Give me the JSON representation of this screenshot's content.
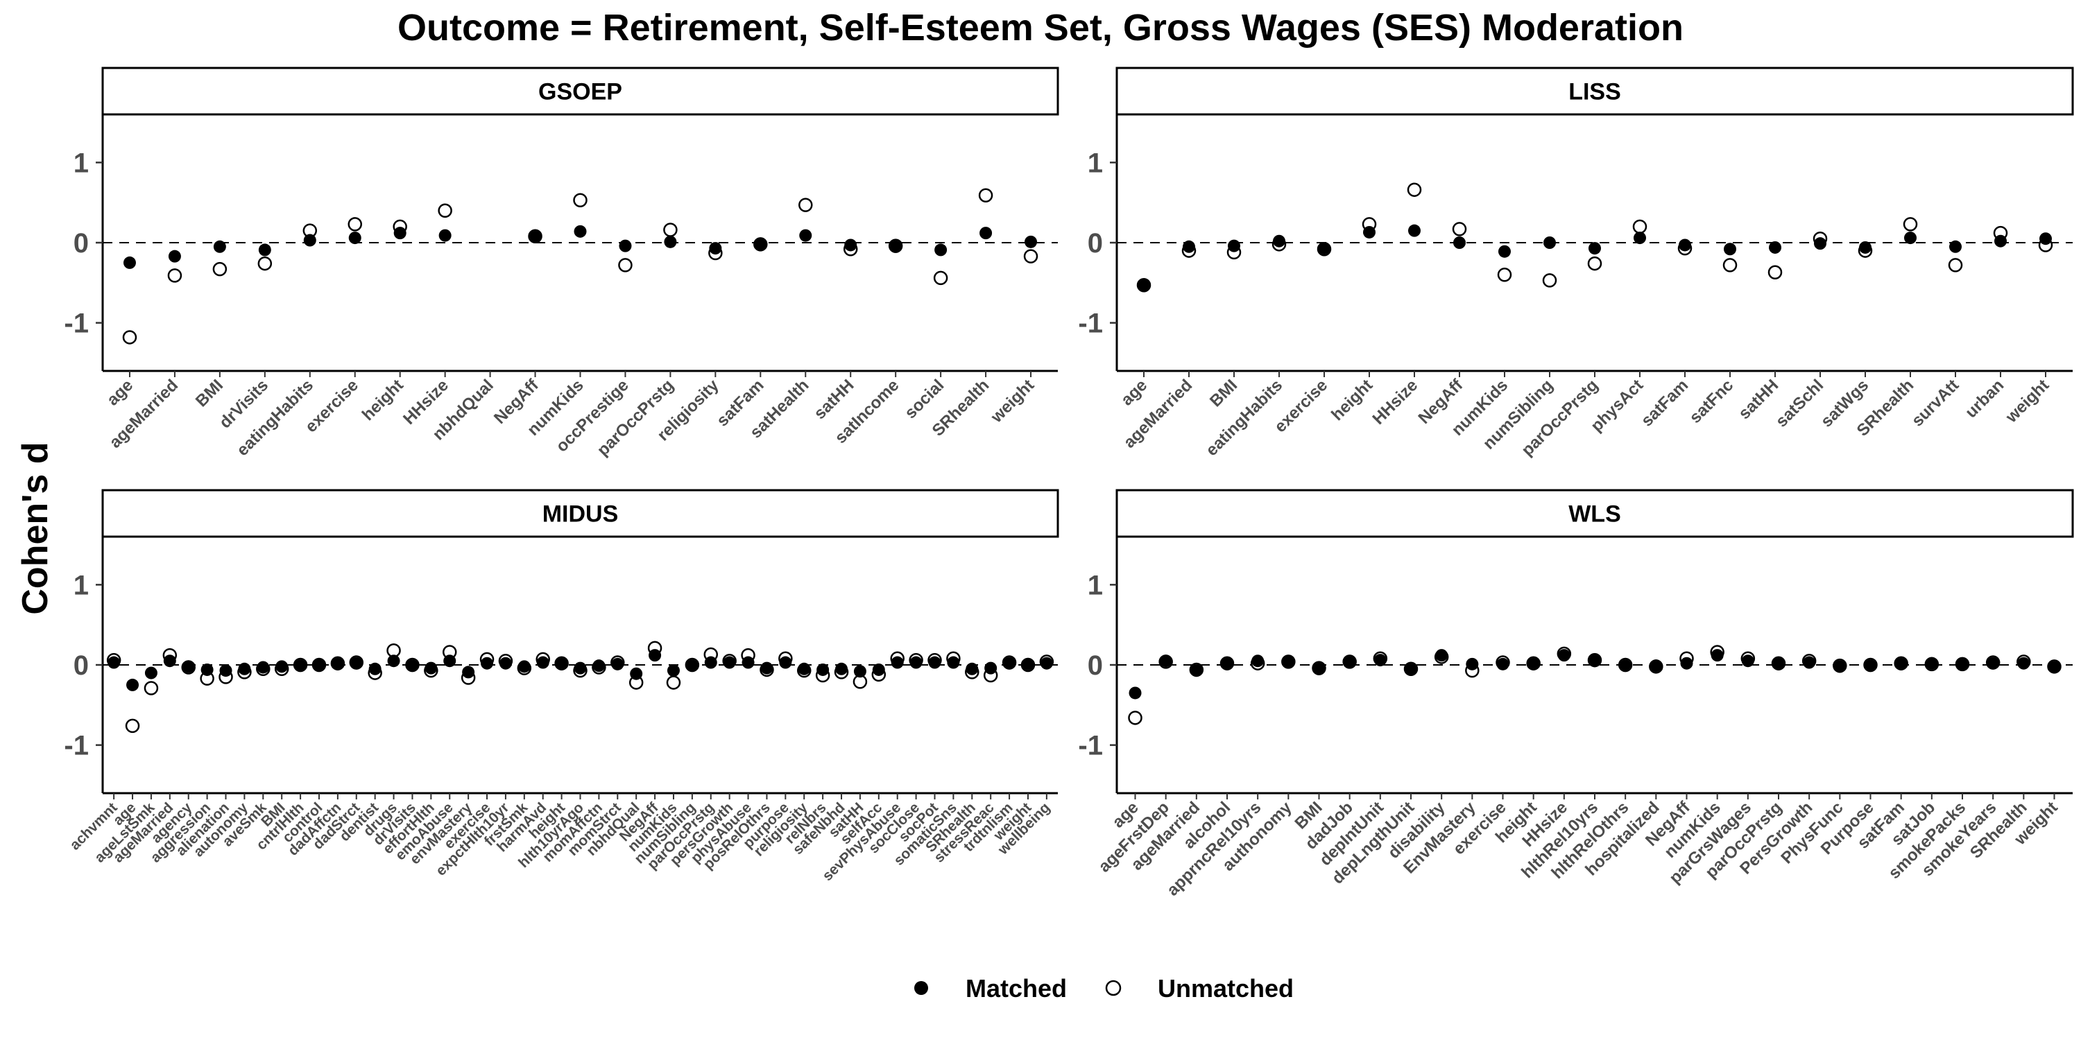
{
  "chart_data": {
    "type": "scatter",
    "title": "Outcome = Retirement, Self-Esteem Set, Gross Wages (SES) Moderation",
    "ylabel": "Cohen's d",
    "xlabel": "",
    "ylim": [
      -1.6,
      1.6
    ],
    "yticks": [
      -1,
      0,
      1
    ],
    "reference_line": 0,
    "grid": false,
    "legend": {
      "position": "bottom",
      "entries": [
        {
          "label": "Matched",
          "symbol": "filled-circle"
        },
        {
          "label": "Unmatched",
          "symbol": "open-circle"
        }
      ]
    },
    "panels": [
      {
        "name": "GSOEP",
        "categories": [
          "age",
          "ageMarried",
          "BMI",
          "drVisits",
          "eatingHabits",
          "exercise",
          "height",
          "HHsize",
          "nbhdQual",
          "NegAff",
          "numKids",
          "occPrestige",
          "parOccPrstg",
          "religiosity",
          "satFam",
          "satHealth",
          "satHH",
          "satIncome",
          "social",
          "SRhealth",
          "weight"
        ],
        "series": [
          {
            "name": "Matched",
            "values": [
              -0.25,
              -0.17,
              -0.05,
              -0.09,
              0.03,
              0.06,
              0.12,
              0.09,
              null,
              0.08,
              0.14,
              -0.04,
              0.01,
              -0.07,
              -0.03,
              0.09,
              -0.03,
              -0.05,
              -0.09,
              0.12,
              0.01
            ]
          },
          {
            "name": "Unmatched",
            "values": [
              -1.18,
              -0.41,
              -0.33,
              -0.26,
              0.15,
              0.23,
              0.2,
              0.4,
              null,
              0.08,
              0.53,
              -0.28,
              0.16,
              -0.13,
              -0.02,
              0.47,
              -0.08,
              -0.04,
              -0.44,
              0.59,
              -0.17
            ]
          }
        ]
      },
      {
        "name": "LISS",
        "categories": [
          "age",
          "ageMarried",
          "BMI",
          "eatingHabits",
          "exercise",
          "height",
          "HHsize",
          "NegAff",
          "numKids",
          "numSibling",
          "parOccPrstg",
          "physAct",
          "satFam",
          "satFnc",
          "satHH",
          "satSchl",
          "satWgs",
          "SRhealth",
          "survAtt",
          "urban",
          "weight"
        ],
        "series": [
          {
            "name": "Matched",
            "values": [
              -0.53,
              -0.05,
              -0.04,
              0.02,
              -0.07,
              0.13,
              0.15,
              0.0,
              -0.11,
              0.0,
              -0.07,
              0.06,
              -0.03,
              -0.08,
              -0.06,
              -0.01,
              -0.06,
              0.06,
              -0.05,
              0.02,
              0.05
            ]
          },
          {
            "name": "Unmatched",
            "values": [
              -0.53,
              -0.1,
              -0.12,
              -0.02,
              -0.08,
              0.23,
              0.66,
              0.17,
              -0.4,
              -0.47,
              -0.26,
              0.2,
              -0.07,
              -0.28,
              -0.37,
              0.05,
              -0.1,
              0.23,
              -0.28,
              0.12,
              -0.03
            ]
          }
        ]
      },
      {
        "name": "MIDUS",
        "categories": [
          "achvmnt",
          "age",
          "ageLstSmk",
          "ageMarried",
          "agency",
          "aggression",
          "alienation",
          "autonomy",
          "aveSmk",
          "BMI",
          "cntrlHlth",
          "control",
          "dadAffctn",
          "dadStrct",
          "dentist",
          "drugs",
          "drVisits",
          "effortHlth",
          "emoAbuse",
          "envMastery",
          "exercise",
          "expctHlth10yr",
          "frstSmk",
          "harmAvd",
          "height",
          "hlth10yrAgo",
          "momAffctn",
          "momStrct",
          "nbhdQual",
          "NegAff",
          "numKids",
          "numSibling",
          "parOccPrstg",
          "persGrowth",
          "physAbuse",
          "posRelOthrs",
          "purpose",
          "religiosity",
          "relNbrs",
          "safeNbhd",
          "satHH",
          "selfAcc",
          "sevPhysAbuse",
          "socClose",
          "socPot",
          "somaticSns",
          "SRhealth",
          "stressReac",
          "trdtnlism",
          "weight",
          "wellbeing"
        ],
        "series": [
          {
            "name": "Matched",
            "values": [
              0.03,
              -0.25,
              -0.1,
              0.05,
              -0.02,
              -0.06,
              -0.07,
              -0.05,
              -0.03,
              -0.02,
              -0.01,
              0.0,
              0.01,
              0.02,
              -0.05,
              0.05,
              -0.01,
              -0.04,
              0.05,
              -0.09,
              0.02,
              0.02,
              -0.02,
              0.03,
              0.01,
              -0.04,
              -0.01,
              0.01,
              -0.11,
              0.12,
              -0.07,
              -0.01,
              0.03,
              0.03,
              0.03,
              -0.04,
              0.03,
              -0.05,
              -0.06,
              -0.05,
              -0.08,
              -0.06,
              0.03,
              0.03,
              0.03,
              0.03,
              -0.05,
              -0.04,
              0.02,
              0.01,
              0.02
            ]
          },
          {
            "name": "Unmatched",
            "values": [
              0.06,
              -0.76,
              -0.29,
              0.12,
              -0.03,
              -0.17,
              -0.15,
              -0.09,
              -0.05,
              -0.05,
              0.0,
              0.0,
              0.02,
              0.03,
              -0.1,
              0.18,
              0.0,
              -0.07,
              0.16,
              -0.16,
              0.07,
              0.05,
              -0.04,
              0.07,
              0.02,
              -0.07,
              -0.03,
              0.03,
              -0.22,
              0.21,
              -0.22,
              0.0,
              0.13,
              0.05,
              0.12,
              -0.06,
              0.08,
              -0.07,
              -0.13,
              -0.09,
              -0.21,
              -0.12,
              0.08,
              0.06,
              0.06,
              0.08,
              -0.09,
              -0.13,
              0.03,
              0.0,
              0.04
            ]
          }
        ]
      },
      {
        "name": "WLS",
        "categories": [
          "age",
          "ageFrstDep",
          "ageMarried",
          "alcohol",
          "apprncRel10yrs",
          "authonomy",
          "BMI",
          "dadJob",
          "depIntUnit",
          "depLngthUnit",
          "disability",
          "EnvMastery",
          "exercise",
          "height",
          "HHsize",
          "hlthRel10yrs",
          "hlthRelOthrs",
          "hospitalized",
          "NegAff",
          "numKids",
          "parGrsWages",
          "parOccPrstg",
          "PersGrowth",
          "PhysFunc",
          "Purpose",
          "satFam",
          "satJob",
          "smokePacks",
          "smokeYears",
          "SRhealth",
          "weight"
        ],
        "series": [
          {
            "name": "Matched",
            "values": [
              -0.35,
              0.05,
              -0.07,
              0.02,
              0.05,
              0.04,
              -0.05,
              0.03,
              0.06,
              -0.06,
              0.12,
              0.01,
              0.01,
              0.01,
              0.12,
              0.05,
              -0.01,
              -0.01,
              0.02,
              0.12,
              0.05,
              0.01,
              0.03,
              -0.02,
              -0.01,
              0.01,
              0.02,
              0.0,
              0.02,
              0.02,
              -0.03
            ]
          },
          {
            "name": "Unmatched",
            "values": [
              -0.66,
              0.04,
              -0.06,
              0.02,
              0.02,
              0.04,
              -0.04,
              0.04,
              0.08,
              -0.05,
              0.1,
              -0.07,
              0.03,
              0.02,
              0.14,
              0.06,
              0.0,
              -0.02,
              0.08,
              0.16,
              0.08,
              0.02,
              0.05,
              -0.01,
              0.0,
              0.02,
              0.01,
              0.01,
              0.03,
              0.04,
              -0.02
            ]
          }
        ]
      }
    ]
  }
}
